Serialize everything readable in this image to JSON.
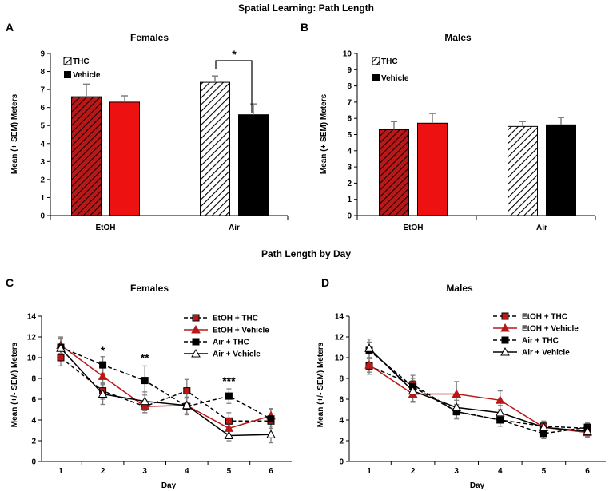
{
  "figure": {
    "title_top": "Spatial Learning: Path Length",
    "title_mid": "Path Length by Day"
  },
  "colors": {
    "red": "#ee1111",
    "dark_red": "#b81818",
    "black": "#000000",
    "error": "#808080"
  },
  "chart_data": [
    {
      "panel": "A",
      "type": "bar",
      "title": "Females",
      "ylabel": "Mean (+ SEM) Meters",
      "ylim": [
        0,
        9
      ],
      "yticks": [
        0,
        1,
        2,
        3,
        4,
        5,
        6,
        7,
        8,
        9
      ],
      "categories": [
        "EtOH",
        "Air"
      ],
      "legend": [
        "THC",
        "Vehicle"
      ],
      "series": [
        {
          "name": "THC",
          "values": [
            6.6,
            7.4
          ],
          "errors": [
            0.7,
            0.35
          ]
        },
        {
          "name": "Vehicle",
          "values": [
            6.3,
            5.6
          ],
          "errors": [
            0.35,
            0.6
          ]
        }
      ],
      "annotation": "*"
    },
    {
      "panel": "B",
      "type": "bar",
      "title": "Males",
      "ylabel": "Mean (+ SEM) Meters",
      "ylim": [
        0,
        10
      ],
      "yticks": [
        0,
        1,
        2,
        3,
        4,
        5,
        6,
        7,
        8,
        9,
        10
      ],
      "categories": [
        "EtOH",
        "Air"
      ],
      "legend": [
        "THC",
        "Vehicle"
      ],
      "series": [
        {
          "name": "THC",
          "values": [
            5.3,
            5.5
          ],
          "errors": [
            0.5,
            0.3
          ]
        },
        {
          "name": "Vehicle",
          "values": [
            5.7,
            5.6
          ],
          "errors": [
            0.6,
            0.45
          ]
        }
      ]
    },
    {
      "panel": "C",
      "type": "line",
      "title": "Females",
      "xlabel": "Day",
      "ylabel": "Mean (+/- SEM) Meters",
      "ylim": [
        0,
        14
      ],
      "yticks": [
        0,
        2,
        4,
        6,
        8,
        10,
        12,
        14
      ],
      "x": [
        1,
        2,
        3,
        4,
        5,
        6
      ],
      "series": [
        {
          "name": "EtOH + THC",
          "values": [
            10.0,
            6.8,
            5.3,
            6.8,
            3.9,
            3.9
          ],
          "errors": [
            0.8,
            0.8,
            0.6,
            1.1,
            0.8,
            0.7
          ]
        },
        {
          "name": "EtOH + Vehicle",
          "values": [
            11.2,
            8.2,
            5.3,
            5.4,
            3.2,
            4.4
          ],
          "errors": [
            0.8,
            0.8,
            0.6,
            0.8,
            0.7,
            0.7
          ]
        },
        {
          "name": "Air + THC",
          "values": [
            11.0,
            9.3,
            7.8,
            5.3,
            6.3,
            4.1
          ],
          "errors": [
            0.9,
            0.8,
            1.4,
            0.8,
            0.7,
            0.9
          ]
        },
        {
          "name": "Air + Vehicle",
          "values": [
            10.9,
            6.5,
            5.8,
            5.4,
            2.5,
            2.6
          ],
          "errors": [
            0.9,
            1.0,
            0.9,
            0.8,
            0.5,
            0.8
          ]
        }
      ],
      "annotations": [
        {
          "x": 2,
          "text": "*"
        },
        {
          "x": 3,
          "text": "**"
        },
        {
          "x": 5,
          "text": "***"
        }
      ]
    },
    {
      "panel": "D",
      "type": "line",
      "title": "Males",
      "xlabel": "Day",
      "ylabel": "Mean (+/- SEM) Meters",
      "ylim": [
        0,
        14
      ],
      "yticks": [
        0,
        2,
        4,
        6,
        8,
        10,
        12,
        14
      ],
      "x": [
        1,
        2,
        3,
        4,
        5,
        6
      ],
      "series": [
        {
          "name": "EtOH + THC",
          "values": [
            9.2,
            7.4,
            4.8,
            4.0,
            3.4,
            3.2
          ],
          "errors": [
            0.8,
            0.9,
            0.7,
            0.6,
            0.5,
            0.5
          ]
        },
        {
          "name": "EtOH + Vehicle",
          "values": [
            9.3,
            6.5,
            6.5,
            5.9,
            3.3,
            2.8
          ],
          "errors": [
            0.7,
            0.8,
            1.2,
            0.9,
            0.5,
            0.5
          ]
        },
        {
          "name": "Air + THC",
          "values": [
            10.7,
            7.2,
            4.8,
            4.0,
            2.7,
            3.3
          ],
          "errors": [
            0.8,
            0.8,
            0.6,
            0.6,
            0.5,
            0.5
          ]
        },
        {
          "name": "Air + Vehicle",
          "values": [
            10.9,
            6.8,
            5.2,
            4.7,
            3.3,
            2.9
          ],
          "errors": [
            0.9,
            1.0,
            0.7,
            0.7,
            0.5,
            0.5
          ]
        }
      ]
    }
  ]
}
